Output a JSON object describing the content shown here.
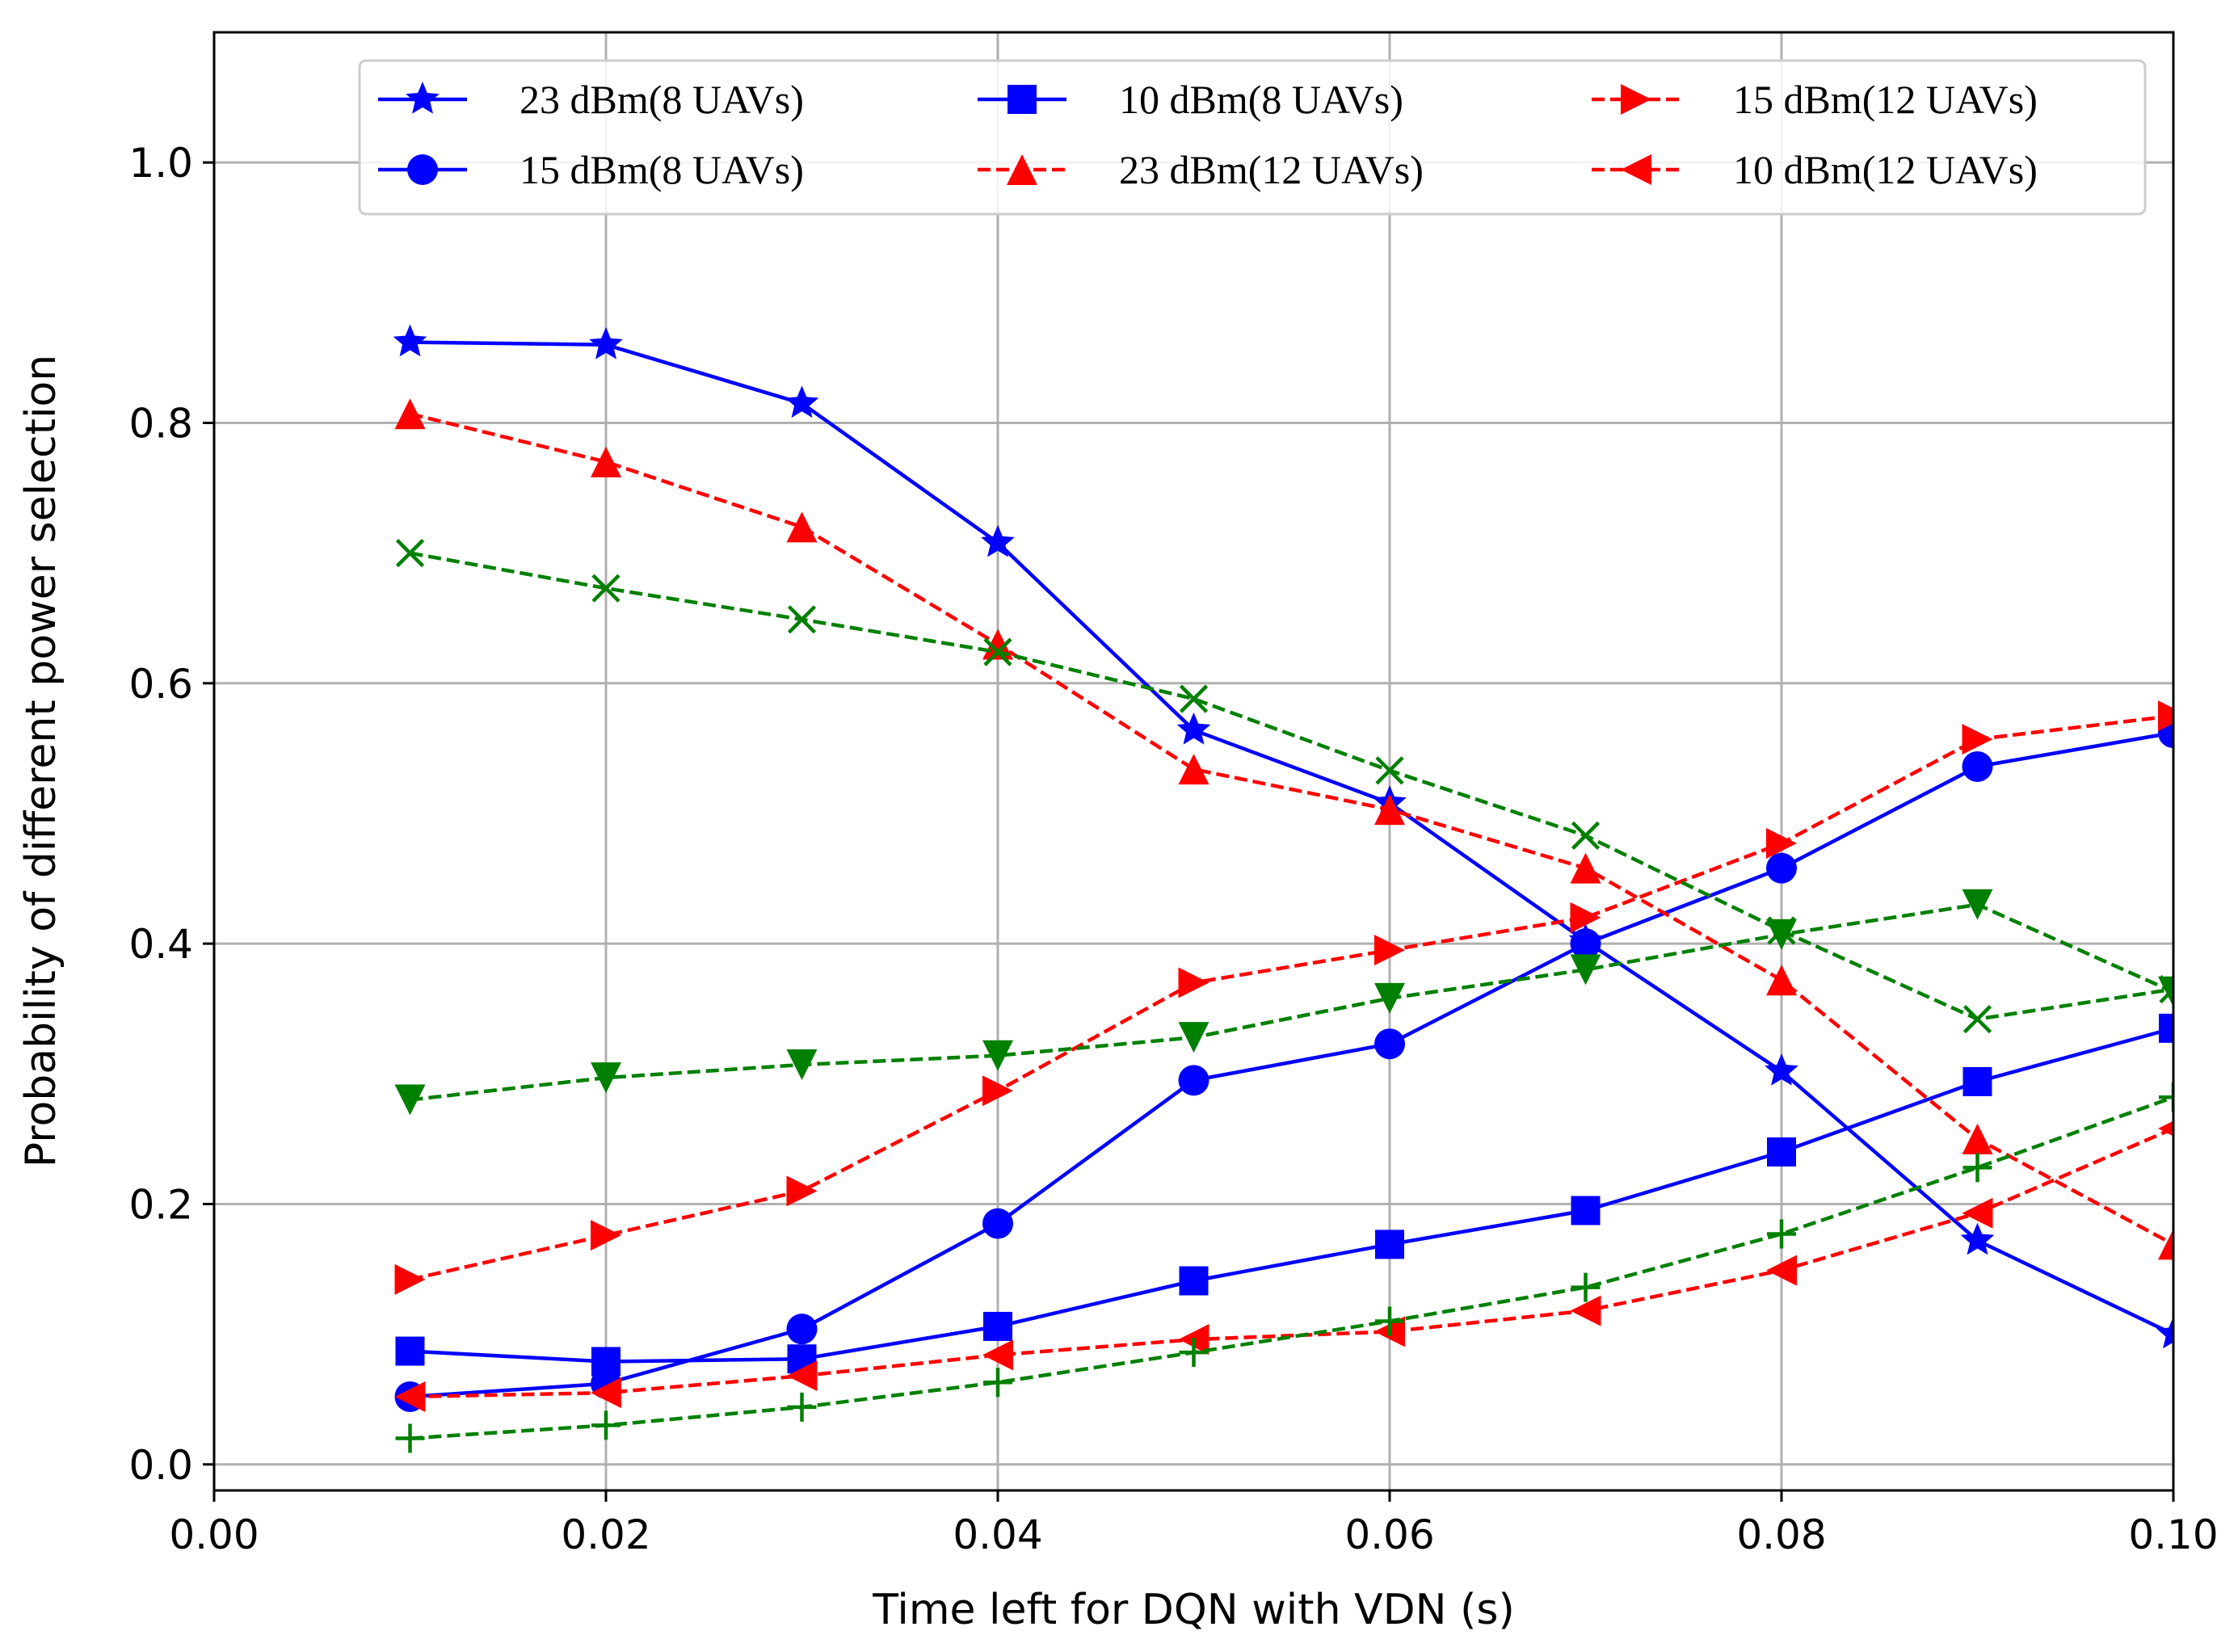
{
  "chart_data": {
    "type": "line",
    "title": "",
    "xlabel": "Time left for DQN with VDN (s)",
    "ylabel": "Probability of different power selection",
    "xlim": [
      0.0,
      0.1
    ],
    "ylim": [
      -0.02,
      1.1
    ],
    "xticks": [
      0.0,
      0.02,
      0.04,
      0.06,
      0.08,
      0.1
    ],
    "xtick_labels": [
      "0.00",
      "0.02",
      "0.04",
      "0.06",
      "0.08",
      "0.10"
    ],
    "yticks": [
      0.0,
      0.2,
      0.4,
      0.6,
      0.8,
      1.0
    ],
    "ytick_labels": [
      "0.0",
      "0.2",
      "0.4",
      "0.6",
      "0.8",
      "1.0"
    ],
    "grid": true,
    "legend_position": "top",
    "x": [
      0.01,
      0.02,
      0.03,
      0.04,
      0.05,
      0.06,
      0.07,
      0.08,
      0.09,
      0.1
    ],
    "series": [
      {
        "name": "23 dBm(8 UAVs)",
        "color": "#0000ff",
        "dash": "solid",
        "marker": "star",
        "legend": true,
        "values": [
          0.862,
          0.86,
          0.815,
          0.708,
          0.564,
          0.508,
          0.402,
          0.302,
          0.172,
          0.1
        ]
      },
      {
        "name": "15 dBm(8 UAVs)",
        "color": "#0000ff",
        "dash": "solid",
        "marker": "circle",
        "legend": true,
        "values": [
          0.052,
          0.062,
          0.104,
          0.185,
          0.295,
          0.323,
          0.4,
          0.458,
          0.536,
          0.562
        ]
      },
      {
        "name": "10 dBm(8 UAVs)",
        "color": "#0000ff",
        "dash": "solid",
        "marker": "square",
        "legend": true,
        "values": [
          0.087,
          0.079,
          0.081,
          0.106,
          0.141,
          0.169,
          0.195,
          0.24,
          0.294,
          0.335
        ]
      },
      {
        "name": "23 dBm(12 UAVs)",
        "color": "#ff0000",
        "dash": "dashed",
        "marker": "triangle-up",
        "legend": true,
        "values": [
          0.807,
          0.77,
          0.72,
          0.63,
          0.534,
          0.503,
          0.458,
          0.372,
          0.25,
          0.169
        ]
      },
      {
        "name": "15 dBm(12 UAVs)",
        "color": "#ff0000",
        "dash": "dashed",
        "marker": "triangle-right",
        "legend": true,
        "values": [
          0.142,
          0.176,
          0.21,
          0.287,
          0.37,
          0.395,
          0.42,
          0.477,
          0.557,
          0.575
        ]
      },
      {
        "name": "10 dBm(12 UAVs)",
        "color": "#ff0000",
        "dash": "dashed",
        "marker": "triangle-left",
        "legend": true,
        "values": [
          0.052,
          0.055,
          0.068,
          0.084,
          0.096,
          0.102,
          0.118,
          0.149,
          0.193,
          0.258
        ]
      },
      {
        "name": "green-x-series",
        "color": "#008000",
        "dash": "dashed",
        "marker": "x",
        "legend": false,
        "values": [
          0.7,
          0.673,
          0.649,
          0.624,
          0.588,
          0.533,
          0.483,
          0.41,
          0.342,
          0.365
        ]
      },
      {
        "name": "green-triangle-down-series",
        "color": "#008000",
        "dash": "dashed",
        "marker": "triangle-down",
        "legend": false,
        "values": [
          0.28,
          0.297,
          0.307,
          0.314,
          0.328,
          0.358,
          0.38,
          0.407,
          0.43,
          0.363
        ]
      },
      {
        "name": "green-plus-series",
        "color": "#008000",
        "dash": "dashed",
        "marker": "plus",
        "legend": false,
        "values": [
          0.02,
          0.03,
          0.044,
          0.063,
          0.086,
          0.11,
          0.136,
          0.177,
          0.228,
          0.282
        ]
      }
    ]
  }
}
